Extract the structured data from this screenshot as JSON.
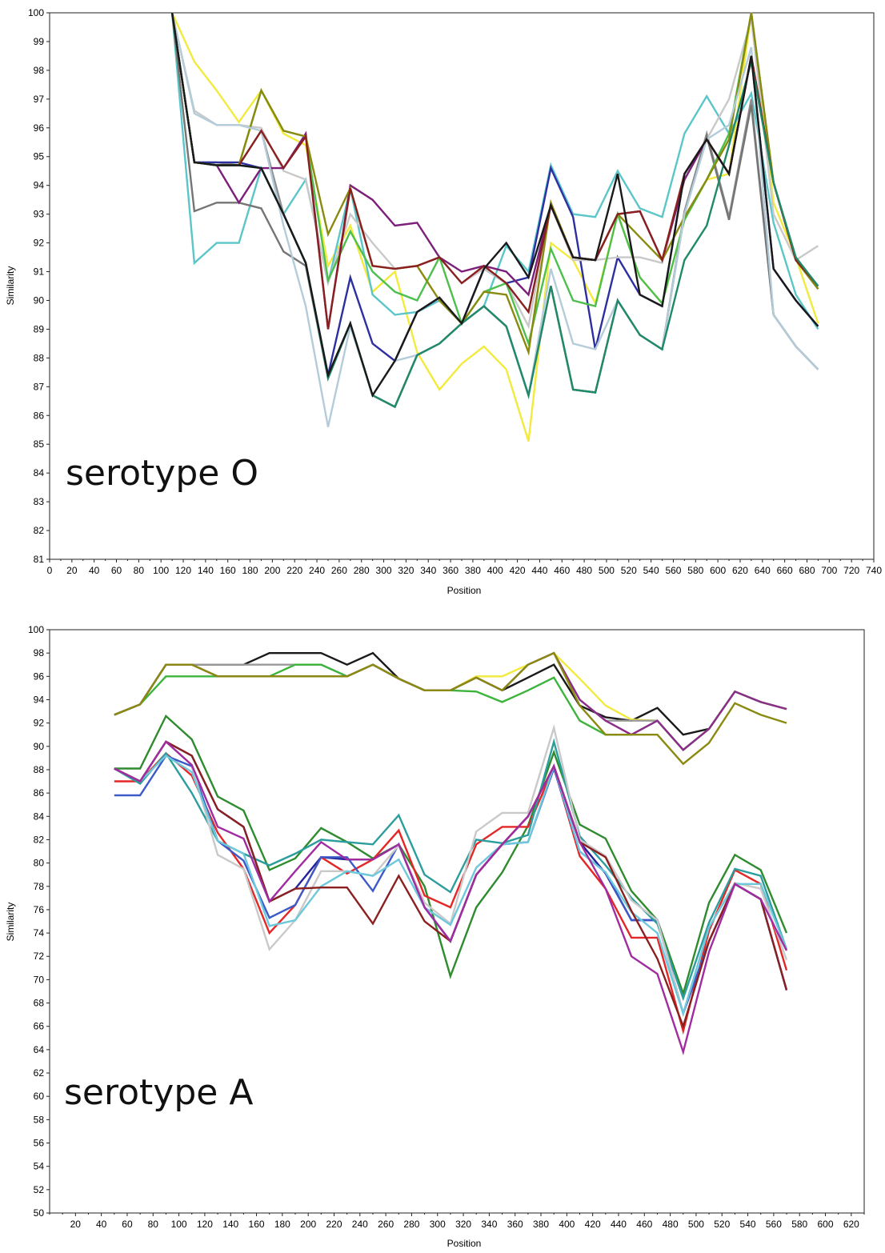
{
  "chart_data": [
    {
      "type": "line",
      "annotation": "serotype O",
      "xlabel": "Position",
      "ylabel": "Similarity",
      "xlim": [
        0,
        740
      ],
      "ylim": [
        81,
        100
      ],
      "xticks": [
        0,
        20,
        40,
        60,
        80,
        100,
        120,
        140,
        160,
        180,
        200,
        220,
        240,
        260,
        280,
        300,
        320,
        340,
        360,
        380,
        400,
        420,
        440,
        460,
        480,
        500,
        520,
        540,
        560,
        580,
        600,
        620,
        640,
        660,
        680,
        700,
        720,
        740
      ],
      "yticks": [
        81,
        82,
        83,
        84,
        85,
        86,
        87,
        88,
        89,
        90,
        91,
        92,
        93,
        94,
        95,
        96,
        97,
        98,
        99,
        100
      ],
      "grid": false,
      "legend": "none",
      "x": [
        110,
        130,
        150,
        170,
        190,
        210,
        230,
        250,
        270,
        290,
        310,
        330,
        350,
        370,
        390,
        410,
        430,
        450,
        470,
        490,
        510,
        530,
        550,
        570,
        590,
        610,
        630,
        650,
        670,
        690
      ],
      "series": [
        {
          "color": "#f2ea3c",
          "values": [
            100,
            98.3,
            97.3,
            96.2,
            97.3,
            95.8,
            95.4,
            91.2,
            92.6,
            90.3,
            91.0,
            88.2,
            86.9,
            87.8,
            88.4,
            87.6,
            85.1,
            92.0,
            91.4,
            89.9,
            93.0,
            90.8,
            89.9,
            92.8,
            94.2,
            94.4,
            100,
            93.4,
            91.5,
            89.2
          ]
        },
        {
          "color": "#5bc6c9",
          "values": [
            100,
            91.3,
            92.0,
            92.0,
            94.6,
            93.0,
            94.2,
            90.6,
            93.9,
            90.2,
            89.5,
            89.6,
            90.0,
            89.2,
            89.8,
            91.9,
            91.0,
            94.7,
            93.0,
            92.9,
            94.5,
            93.2,
            92.9,
            95.8,
            97.1,
            95.8,
            97.2,
            92.7,
            90.2,
            89.0
          ]
        },
        {
          "color": "#8f8f8f",
          "values": [
            100,
            94.8,
            94.8,
            94.7,
            95.9,
            93.0,
            91.3,
            87.3,
            89.2,
            86.7,
            86.3,
            88.1,
            88.5,
            89.2,
            89.8,
            89.1,
            86.7,
            90.5,
            86.9,
            86.8,
            90.0,
            88.8,
            88.3,
            93.1,
            95.8,
            92.9,
            97.0,
            89.5,
            88.4,
            87.6
          ]
        },
        {
          "color": "#2d2fa0",
          "values": [
            100,
            94.8,
            94.8,
            94.8,
            94.6,
            93.0,
            91.3,
            87.4,
            90.8,
            88.5,
            87.9,
            89.6,
            90.1,
            89.2,
            91.1,
            90.6,
            90.8,
            94.6,
            92.9,
            88.3,
            91.5,
            90.2,
            89.8,
            94.4,
            95.6,
            94.4,
            98.5,
            91.1,
            90.0,
            89.1
          ]
        },
        {
          "color": "#c9c9c9",
          "values": [
            100,
            96.6,
            96.1,
            96.1,
            96.0,
            94.5,
            94.2,
            90.6,
            93.0,
            92.0,
            91.1,
            91.2,
            91.5,
            90.6,
            91.1,
            90.6,
            89.1,
            93.3,
            91.4,
            91.4,
            91.5,
            91.5,
            91.3,
            94.2,
            95.6,
            97.0,
            99.8,
            93.0,
            91.4,
            91.9
          ]
        },
        {
          "color": "#757575",
          "values": [
            100,
            93.1,
            93.4,
            93.4,
            93.2,
            91.7,
            91.2,
            87.3,
            89.2,
            86.7,
            86.3,
            88.1,
            88.5,
            89.2,
            89.8,
            89.1,
            86.7,
            90.5,
            86.9,
            86.8,
            90.0,
            88.8,
            88.3,
            93.0,
            95.7,
            92.8,
            96.8,
            89.5,
            88.4,
            87.6
          ]
        },
        {
          "color": "#7c1f7a",
          "values": [
            100,
            94.8,
            94.7,
            93.4,
            94.6,
            94.6,
            95.8,
            89.0,
            94.0,
            93.5,
            92.6,
            92.7,
            91.5,
            91.0,
            91.2,
            91.0,
            90.2,
            93.3,
            91.5,
            91.4,
            93.0,
            93.1,
            91.4,
            94.2,
            95.6,
            94.4,
            98.5,
            94.1,
            91.4,
            90.4
          ]
        },
        {
          "color": "#4dbf4d",
          "values": [
            100,
            94.8,
            94.7,
            94.7,
            97.3,
            95.9,
            95.7,
            90.7,
            92.4,
            91.0,
            90.3,
            90.0,
            91.5,
            89.2,
            90.3,
            90.6,
            88.5,
            91.8,
            90.0,
            89.8,
            93.0,
            90.8,
            89.9,
            92.8,
            94.2,
            95.8,
            100,
            94.1,
            91.4,
            90.4
          ]
        },
        {
          "color": "#8a8a10",
          "values": [
            100,
            94.8,
            94.7,
            94.7,
            97.3,
            95.9,
            95.7,
            92.3,
            93.9,
            91.2,
            91.1,
            91.2,
            90.0,
            89.2,
            90.3,
            90.2,
            88.2,
            93.4,
            91.5,
            91.4,
            93.0,
            92.2,
            91.4,
            92.9,
            94.2,
            95.6,
            100,
            94.1,
            91.4,
            90.4
          ]
        },
        {
          "color": "#b4ccd9",
          "values": [
            100,
            96.5,
            96.1,
            96.1,
            95.9,
            92.6,
            89.8,
            85.6,
            89.1,
            86.7,
            87.9,
            88.1,
            88.5,
            89.2,
            89.8,
            89.1,
            86.7,
            91.1,
            88.5,
            88.3,
            90.0,
            88.8,
            88.3,
            93.0,
            95.6,
            96.1,
            98.8,
            89.5,
            88.4,
            87.6
          ]
        },
        {
          "color": "#8a1f1f",
          "values": [
            100,
            94.8,
            94.7,
            94.7,
            95.9,
            94.6,
            95.7,
            89.0,
            93.9,
            91.2,
            91.1,
            91.2,
            91.5,
            90.6,
            91.2,
            90.6,
            89.6,
            93.3,
            91.5,
            91.4,
            93.0,
            93.1,
            91.4,
            94.4,
            95.6,
            94.4,
            98.5,
            94.1,
            91.4,
            90.5
          ]
        },
        {
          "color": "#1f8a6a",
          "values": [
            100,
            94.8,
            94.7,
            94.7,
            94.6,
            93.0,
            91.3,
            87.3,
            89.2,
            86.7,
            86.3,
            88.1,
            88.5,
            89.2,
            89.8,
            89.1,
            86.7,
            90.5,
            86.9,
            86.8,
            90.0,
            88.8,
            88.3,
            91.4,
            92.6,
            95.4,
            98.3,
            94.1,
            91.5,
            90.5
          ]
        },
        {
          "color": "#1a1a1a",
          "values": [
            100,
            94.8,
            94.7,
            94.7,
            94.6,
            93.0,
            91.3,
            87.4,
            89.2,
            86.7,
            87.9,
            89.6,
            90.1,
            89.2,
            91.1,
            92.0,
            90.8,
            93.3,
            91.5,
            91.4,
            94.4,
            90.2,
            89.8,
            94.4,
            95.6,
            94.4,
            98.5,
            91.1,
            90.0,
            89.1
          ]
        }
      ]
    },
    {
      "type": "line",
      "annotation": "serotype A",
      "xlabel": "Position",
      "ylabel": "Similarity",
      "xlim": [
        0,
        630
      ],
      "ylim": [
        50,
        100
      ],
      "xticks": [
        20,
        40,
        60,
        80,
        100,
        120,
        140,
        160,
        180,
        200,
        220,
        240,
        260,
        280,
        300,
        320,
        340,
        360,
        380,
        400,
        420,
        440,
        460,
        480,
        500,
        520,
        540,
        560,
        580,
        600,
        620
      ],
      "yticks": [
        50,
        52,
        54,
        56,
        58,
        60,
        62,
        64,
        66,
        68,
        70,
        72,
        74,
        76,
        78,
        80,
        82,
        84,
        86,
        88,
        90,
        92,
        94,
        96,
        98,
        100
      ],
      "grid": false,
      "legend": "none",
      "x": [
        50,
        70,
        90,
        110,
        130,
        150,
        170,
        190,
        210,
        230,
        250,
        270,
        290,
        310,
        330,
        350,
        370,
        390,
        410,
        430,
        450,
        470,
        490,
        510,
        530,
        550,
        570
      ],
      "series": [
        {
          "color": "#1a1a1a",
          "values": [
            92.7,
            93.6,
            97.0,
            97.0,
            97.0,
            97.0,
            98.0,
            98.0,
            98.0,
            97.0,
            98.0,
            95.8,
            94.8,
            94.8,
            95.9,
            94.8,
            95.9,
            97.0,
            93.5,
            92.5,
            92.2,
            93.3,
            91.0,
            91.5,
            94.7,
            93.8,
            93.2
          ]
        },
        {
          "color": "#f2ea3c",
          "values": [
            92.7,
            93.6,
            97.0,
            97.0,
            96.0,
            96.0,
            96.0,
            96.0,
            96.0,
            96.0,
            97.0,
            95.8,
            94.8,
            94.8,
            96.0,
            96.0,
            97.0,
            98.0,
            95.8,
            93.5,
            92.3,
            92.2,
            89.7,
            91.5,
            94.7,
            93.8,
            93.2
          ]
        },
        {
          "color": "#9a9a9a",
          "values": [
            92.7,
            93.6,
            97.0,
            97.0,
            97.0,
            97.0,
            97.0,
            97.0,
            97.0,
            96.0,
            97.0,
            95.8,
            94.8,
            94.8,
            95.9,
            94.8,
            97.0,
            98.0,
            94.0,
            92.2,
            92.2,
            92.2,
            89.7,
            91.5,
            94.7,
            93.8,
            93.2
          ]
        },
        {
          "color": "#3cb43c",
          "values": [
            92.7,
            93.6,
            96.0,
            96.0,
            96.0,
            96.0,
            96.0,
            97.0,
            97.0,
            96.0,
            97.0,
            95.8,
            94.8,
            94.8,
            94.7,
            93.8,
            94.8,
            95.9,
            92.2,
            91.0,
            91.0,
            92.2,
            89.7,
            91.5,
            94.7,
            93.8,
            93.2
          ]
        },
        {
          "color": "#8c2b8c",
          "values": [
            92.7,
            93.6,
            97.0,
            97.0,
            96.0,
            96.0,
            96.0,
            96.0,
            96.0,
            96.0,
            97.0,
            95.8,
            94.8,
            94.8,
            95.9,
            94.8,
            97.0,
            98.0,
            94.0,
            92.2,
            91.0,
            92.2,
            89.7,
            91.5,
            94.7,
            93.8,
            93.2
          ]
        },
        {
          "color": "#8a8a10",
          "values": [
            92.7,
            93.6,
            97.0,
            97.0,
            96.0,
            96.0,
            96.0,
            96.0,
            96.0,
            96.0,
            97.0,
            95.8,
            94.8,
            94.8,
            95.9,
            94.8,
            97.0,
            98.0,
            93.5,
            91.0,
            91.0,
            91.0,
            88.5,
            90.3,
            93.7,
            92.7,
            92.0
          ]
        },
        {
          "color": "#2e8b2e",
          "values": [
            88.1,
            88.1,
            92.6,
            90.6,
            85.7,
            84.5,
            79.4,
            80.4,
            83.0,
            81.8,
            80.4,
            81.6,
            78.0,
            70.3,
            76.2,
            79.2,
            83.2,
            89.5,
            83.3,
            82.1,
            77.6,
            75.1,
            68.8,
            76.6,
            80.7,
            79.4,
            74.0
          ]
        },
        {
          "color": "#23239a",
          "values": [
            88.1,
            87.0,
            90.4,
            89.2,
            84.6,
            83.1,
            76.7,
            77.8,
            80.5,
            80.3,
            80.3,
            81.6,
            76.2,
            73.3,
            79.0,
            81.6,
            84.0,
            88.3,
            81.8,
            79.1,
            75.1,
            75.1,
            67.1,
            73.3,
            78.2,
            76.9,
            69.1
          ]
        },
        {
          "color": "#e52626",
          "values": [
            87.0,
            87.0,
            89.4,
            87.5,
            82.6,
            79.5,
            74.0,
            76.4,
            80.5,
            79.1,
            80.3,
            82.8,
            77.2,
            76.2,
            81.6,
            83.1,
            83.1,
            88.2,
            80.6,
            77.8,
            73.6,
            73.6,
            65.6,
            74.2,
            79.4,
            78.2,
            70.8
          ]
        },
        {
          "color": "#3c5ac8",
          "values": [
            85.8,
            85.8,
            89.2,
            88.3,
            81.9,
            80.2,
            75.3,
            76.4,
            80.5,
            80.5,
            77.6,
            81.6,
            76.2,
            73.3,
            79.0,
            81.6,
            81.8,
            88.1,
            81.0,
            79.2,
            75.1,
            75.1,
            67.1,
            73.3,
            78.2,
            76.9,
            69.1
          ]
        },
        {
          "color": "#2b9d9d",
          "values": [
            88.1,
            86.8,
            89.4,
            86.0,
            81.9,
            80.8,
            79.8,
            80.8,
            82.0,
            81.8,
            81.6,
            84.1,
            79.0,
            77.5,
            82.0,
            81.7,
            82.4,
            90.4,
            82.3,
            79.8,
            77.0,
            74.8,
            68.4,
            74.9,
            79.5,
            78.9,
            72.6
          ]
        },
        {
          "color": "#c9c9c9",
          "values": [
            88.1,
            87.0,
            90.4,
            88.4,
            80.7,
            79.5,
            72.6,
            75.1,
            79.3,
            79.3,
            78.9,
            81.5,
            76.6,
            74.8,
            82.7,
            84.3,
            84.3,
            91.6,
            82.0,
            80.6,
            76.8,
            75.1,
            67.1,
            74.5,
            78.3,
            77.8,
            71.7
          ]
        },
        {
          "color": "#6ec8dc",
          "values": [
            88.1,
            87.0,
            89.2,
            87.8,
            81.9,
            80.8,
            74.6,
            75.1,
            78.0,
            79.3,
            78.9,
            80.3,
            76.2,
            74.7,
            79.6,
            81.6,
            81.8,
            88.3,
            81.0,
            79.2,
            75.8,
            74.0,
            67.1,
            74.5,
            78.2,
            78.2,
            72.6
          ]
        },
        {
          "color": "#8a2020",
          "values": [
            88.1,
            87.0,
            90.4,
            89.2,
            84.6,
            83.1,
            76.7,
            77.8,
            77.9,
            77.9,
            74.8,
            78.9,
            75.0,
            73.3,
            79.0,
            81.6,
            84.0,
            88.3,
            81.8,
            80.5,
            75.9,
            71.8,
            66.0,
            73.3,
            78.2,
            76.9,
            69.1
          ]
        },
        {
          "color": "#a02ca0",
          "values": [
            88.1,
            87.0,
            90.4,
            88.4,
            83.1,
            82.1,
            76.7,
            79.3,
            81.8,
            80.3,
            80.3,
            81.6,
            76.2,
            73.3,
            79.0,
            81.6,
            84.0,
            88.3,
            81.8,
            77.8,
            72.0,
            70.5,
            63.8,
            72.4,
            78.2,
            76.9,
            72.5
          ]
        }
      ]
    }
  ]
}
